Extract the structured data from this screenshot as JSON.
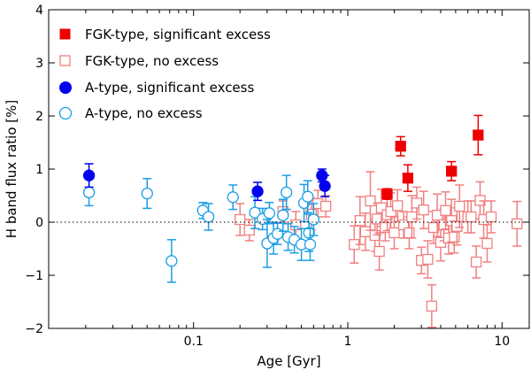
{
  "chart_data": {
    "type": "scatter",
    "xscale": "log",
    "xlabel": "Age [Gyr]",
    "ylabel": "H band flux ratio [%]",
    "xlim": [
      0.0115,
      15
    ],
    "ylim": [
      -2,
      4
    ],
    "x_ticks": [
      {
        "value": 0.1,
        "label": "0.1"
      },
      {
        "value": 1,
        "label": "1"
      },
      {
        "value": 10,
        "label": "10"
      }
    ],
    "y_ticks": [
      {
        "value": -2,
        "label": "−2"
      },
      {
        "value": -1,
        "label": "−1"
      },
      {
        "value": 0,
        "label": "0"
      },
      {
        "value": 1,
        "label": "1"
      },
      {
        "value": 2,
        "label": "2"
      },
      {
        "value": 3,
        "label": "3"
      },
      {
        "value": 4,
        "label": "4"
      }
    ],
    "reference_line": {
      "y": 0,
      "style": "dotted"
    },
    "series": [
      {
        "name": "FGK-type, significant excess",
        "marker": "square",
        "filled": true,
        "color": "#ee0000",
        "points": [
          {
            "x": 1.8,
            "y": 0.53,
            "err": 0.1
          },
          {
            "x": 2.2,
            "y": 1.43,
            "err": 0.18
          },
          {
            "x": 2.45,
            "y": 0.83,
            "err": 0.25
          },
          {
            "x": 4.7,
            "y": 0.96,
            "err": 0.18
          },
          {
            "x": 7.0,
            "y": 1.64,
            "err": 0.37
          }
        ]
      },
      {
        "name": "FGK-type, no excess",
        "marker": "square",
        "filled": false,
        "color": "#f08080",
        "points": [
          {
            "x": 0.2,
            "y": 0.05,
            "err": 0.3
          },
          {
            "x": 0.23,
            "y": -0.15,
            "err": 0.2
          },
          {
            "x": 0.38,
            "y": 0.2,
            "err": 0.2
          },
          {
            "x": 0.46,
            "y": -0.05,
            "err": 0.25
          },
          {
            "x": 0.58,
            "y": 0.15,
            "err": 0.3
          },
          {
            "x": 0.64,
            "y": 0.35,
            "err": 0.25
          },
          {
            "x": 0.72,
            "y": 0.3,
            "err": 0.2
          },
          {
            "x": 1.1,
            "y": -0.42,
            "err": 0.35
          },
          {
            "x": 1.2,
            "y": 0.03,
            "err": 0.45
          },
          {
            "x": 1.3,
            "y": -0.18,
            "err": 0.35
          },
          {
            "x": 1.4,
            "y": 0.4,
            "err": 0.55
          },
          {
            "x": 1.5,
            "y": -0.25,
            "err": 0.3
          },
          {
            "x": 1.55,
            "y": 0.06,
            "err": 0.3
          },
          {
            "x": 1.6,
            "y": -0.55,
            "err": 0.35
          },
          {
            "x": 1.65,
            "y": 0.27,
            "err": 0.35
          },
          {
            "x": 1.75,
            "y": -0.1,
            "err": 0.25
          },
          {
            "x": 1.8,
            "y": 0.14,
            "err": 0.3
          },
          {
            "x": 1.9,
            "y": 0.2,
            "err": 0.35
          },
          {
            "x": 2.0,
            "y": -0.2,
            "err": 0.3
          },
          {
            "x": 2.1,
            "y": 0.31,
            "err": 0.3
          },
          {
            "x": 2.3,
            "y": -0.05,
            "err": 0.25
          },
          {
            "x": 2.5,
            "y": -0.2,
            "err": 0.3
          },
          {
            "x": 2.6,
            "y": 0.1,
            "err": 0.4
          },
          {
            "x": 2.8,
            "y": 0.36,
            "err": 0.3
          },
          {
            "x": 3.0,
            "y": -0.72,
            "err": 0.25
          },
          {
            "x": 3.1,
            "y": 0.23,
            "err": 0.35
          },
          {
            "x": 3.3,
            "y": -0.7,
            "err": 0.35
          },
          {
            "x": 3.5,
            "y": -1.58,
            "err": 0.4
          },
          {
            "x": 3.6,
            "y": -0.1,
            "err": 0.3
          },
          {
            "x": 3.8,
            "y": 0.13,
            "err": 0.4
          },
          {
            "x": 4.0,
            "y": -0.38,
            "err": 0.35
          },
          {
            "x": 4.2,
            "y": -0.05,
            "err": 0.3
          },
          {
            "x": 4.3,
            "y": 0.22,
            "err": 0.35
          },
          {
            "x": 4.5,
            "y": -0.3,
            "err": 0.3
          },
          {
            "x": 4.7,
            "y": 0.03,
            "err": 0.4
          },
          {
            "x": 4.9,
            "y": -0.28,
            "err": 0.3
          },
          {
            "x": 5.1,
            "y": -0.08,
            "err": 0.35
          },
          {
            "x": 5.3,
            "y": 0.3,
            "err": 0.4
          },
          {
            "x": 6.0,
            "y": 0.1,
            "err": 0.3
          },
          {
            "x": 6.3,
            "y": 0.1,
            "err": 0.3
          },
          {
            "x": 6.8,
            "y": -0.75,
            "err": 0.3
          },
          {
            "x": 7.2,
            "y": 0.41,
            "err": 0.35
          },
          {
            "x": 7.6,
            "y": 0.05,
            "err": 0.35
          },
          {
            "x": 8.0,
            "y": -0.4,
            "err": 0.35
          },
          {
            "x": 8.5,
            "y": 0.1,
            "err": 0.3
          },
          {
            "x": 12.5,
            "y": -0.03,
            "err": 0.42
          }
        ]
      },
      {
        "name": "A-type, significant excess",
        "marker": "circle",
        "filled": true,
        "color": "#0000ee",
        "points": [
          {
            "x": 0.021,
            "y": 0.88,
            "err": 0.22
          },
          {
            "x": 0.26,
            "y": 0.58,
            "err": 0.17
          },
          {
            "x": 0.68,
            "y": 0.88,
            "err": 0.12
          },
          {
            "x": 0.71,
            "y": 0.68,
            "err": 0.2
          }
        ]
      },
      {
        "name": "A-type, no excess",
        "marker": "circle",
        "filled": false,
        "color": "#1a9ee5",
        "points": [
          {
            "x": 0.021,
            "y": 0.56,
            "err": 0.25
          },
          {
            "x": 0.05,
            "y": 0.54,
            "err": 0.28
          },
          {
            "x": 0.072,
            "y": -0.73,
            "err": 0.4
          },
          {
            "x": 0.115,
            "y": 0.22,
            "err": 0.15
          },
          {
            "x": 0.125,
            "y": 0.1,
            "err": 0.25
          },
          {
            "x": 0.18,
            "y": 0.47,
            "err": 0.23
          },
          {
            "x": 0.25,
            "y": 0.18,
            "err": 0.3
          },
          {
            "x": 0.28,
            "y": 0.06,
            "err": 0.2
          },
          {
            "x": 0.3,
            "y": -0.4,
            "err": 0.45
          },
          {
            "x": 0.31,
            "y": 0.17,
            "err": 0.2
          },
          {
            "x": 0.33,
            "y": -0.3,
            "err": 0.3
          },
          {
            "x": 0.35,
            "y": -0.22,
            "err": 0.2
          },
          {
            "x": 0.38,
            "y": 0.13,
            "err": 0.3
          },
          {
            "x": 0.4,
            "y": 0.56,
            "err": 0.32
          },
          {
            "x": 0.41,
            "y": -0.28,
            "err": 0.25
          },
          {
            "x": 0.45,
            "y": -0.33,
            "err": 0.25
          },
          {
            "x": 0.5,
            "y": -0.42,
            "err": 0.3
          },
          {
            "x": 0.52,
            "y": 0.36,
            "err": 0.35
          },
          {
            "x": 0.55,
            "y": 0.48,
            "err": 0.3
          },
          {
            "x": 0.56,
            "y": -0.2,
            "err": 0.35
          },
          {
            "x": 0.57,
            "y": -0.42,
            "err": 0.3
          },
          {
            "x": 0.6,
            "y": 0.05,
            "err": 0.3
          }
        ]
      }
    ]
  }
}
